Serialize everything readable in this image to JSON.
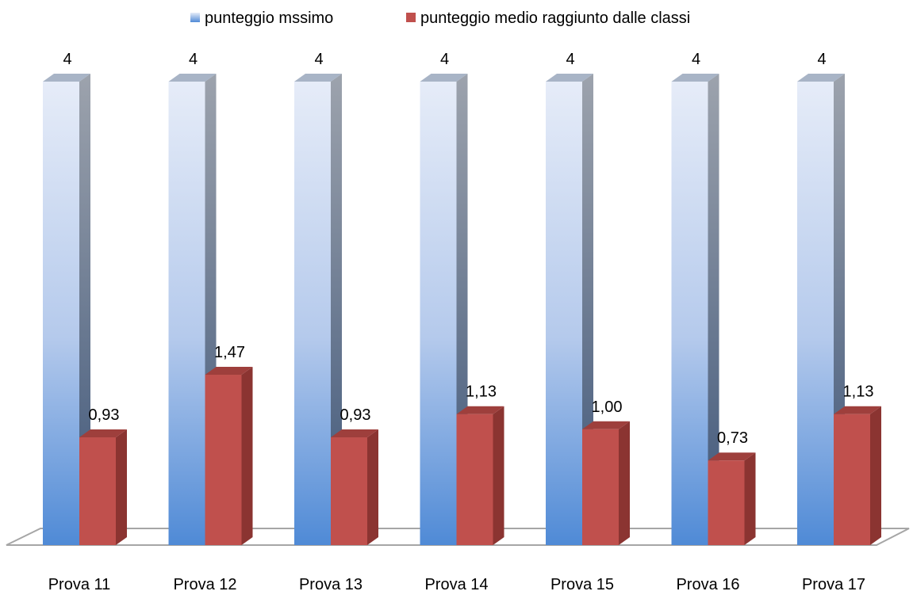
{
  "chart_data": {
    "type": "bar",
    "title": "",
    "xlabel": "",
    "ylabel": "",
    "ylim": [
      0,
      4
    ],
    "grid": false,
    "legend_position": "top",
    "categories": [
      "Prova 11",
      "Prova 12",
      "Prova 13",
      "Prova 14",
      "Prova 15",
      "Prova 16",
      "Prova 17"
    ],
    "series": [
      {
        "name": "punteggio mssimo",
        "values": [
          4,
          4,
          4,
          4,
          4,
          4,
          4
        ],
        "labels": [
          "4",
          "4",
          "4",
          "4",
          "4",
          "4",
          "4"
        ],
        "color": "#A9C4EB"
      },
      {
        "name": "punteggio medio raggiunto dalle classi",
        "values": [
          0.93,
          1.47,
          0.93,
          1.13,
          1.0,
          0.73,
          1.13
        ],
        "labels": [
          "0,93",
          "1,47",
          "0,93",
          "1,13",
          "1,00",
          "0,73",
          "1,13"
        ],
        "color": "#C0504D"
      }
    ]
  }
}
